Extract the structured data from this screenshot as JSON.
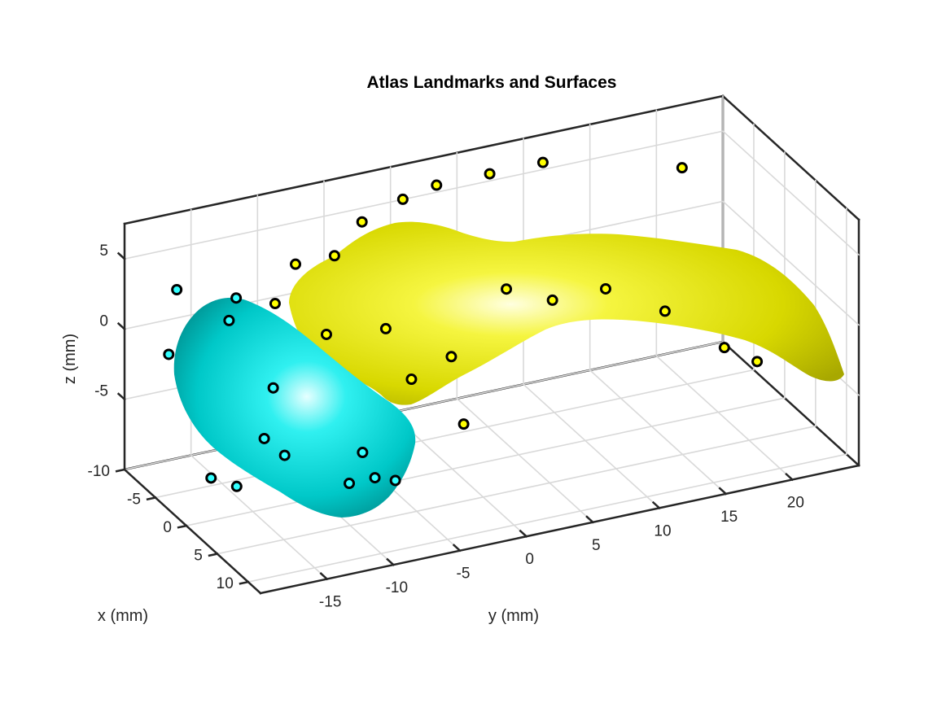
{
  "chart_data": {
    "type": "scatter3d",
    "title": "Atlas Landmarks and Surfaces",
    "xlabel": "x (mm)",
    "ylabel": "y (mm)",
    "zlabel": "z (mm)",
    "xlim": [
      -10,
      12
    ],
    "ylim": [
      -20,
      25
    ],
    "zlim": [
      -10,
      7.5
    ],
    "x_ticks": [
      -10,
      -5,
      0,
      5,
      10
    ],
    "y_ticks": [
      -15,
      -10,
      -5,
      0,
      5,
      10,
      15,
      20
    ],
    "z_ticks": [
      -5,
      0,
      5
    ],
    "x_tick_labels": [
      "-10",
      "-5",
      "0",
      "5",
      "10"
    ],
    "y_tick_labels": [
      "-15",
      "-10",
      "-5",
      "0",
      "5",
      "10",
      "15",
      "20"
    ],
    "z_tick_labels": [
      "-5",
      "0",
      "5"
    ],
    "grid": true,
    "series": [
      {
        "surface": "cyan-surface",
        "color": "#00e0e0",
        "marker_face": "#33ffff",
        "points": [
          {
            "x": -5,
            "y": -19,
            "z": 0
          },
          {
            "x": -8,
            "y": -17,
            "z": 3
          },
          {
            "x": -6,
            "y": -14,
            "z": 1
          },
          {
            "x": -7,
            "y": -13,
            "z": 2
          },
          {
            "x": -1,
            "y": -13,
            "z": -2
          },
          {
            "x": 4,
            "y": -20,
            "z": -5
          },
          {
            "x": 6,
            "y": -19,
            "z": -5
          },
          {
            "x": 4,
            "y": -16,
            "z": -3
          },
          {
            "x": 3,
            "y": -14,
            "z": -5
          },
          {
            "x": 7,
            "y": -11,
            "z": -6
          },
          {
            "x": 7,
            "y": -10,
            "z": -4
          },
          {
            "x": 9,
            "y": -10,
            "z": -5
          },
          {
            "x": 8,
            "y": -8,
            "z": -6
          }
        ]
      },
      {
        "surface": "yellow-surface",
        "color": "#e6e600",
        "marker_face": "#ffff00",
        "points": [
          {
            "x": -5,
            "y": -11,
            "z": 2
          },
          {
            "x": -6,
            "y": -9,
            "z": 4
          },
          {
            "x": -4,
            "y": -7,
            "z": 5
          },
          {
            "x": -6,
            "y": -4,
            "z": 6
          },
          {
            "x": -8,
            "y": 0,
            "z": 6
          },
          {
            "x": -9,
            "y": 3,
            "z": 6
          },
          {
            "x": -9,
            "y": 7,
            "z": 6
          },
          {
            "x": -9,
            "y": 11,
            "z": 6
          },
          {
            "x": -1,
            "y": -9,
            "z": 1
          },
          {
            "x": 0,
            "y": -5,
            "z": 1
          },
          {
            "x": 2,
            "y": -4,
            "z": -2
          },
          {
            "x": 2,
            "y": -1,
            "z": -1
          },
          {
            "x": 4,
            "y": -1,
            "z": -5
          },
          {
            "x": -2,
            "y": 5,
            "z": 1
          },
          {
            "x": -1,
            "y": 8,
            "z": 0
          },
          {
            "x": -1,
            "y": 12,
            "z": 0
          },
          {
            "x": 0,
            "y": 16,
            "z": -2
          },
          {
            "x": -8,
            "y": 21,
            "z": 4
          },
          {
            "x": 1,
            "y": 20,
            "z": -5
          },
          {
            "x": 2,
            "y": 22,
            "z": -6
          }
        ]
      }
    ]
  }
}
